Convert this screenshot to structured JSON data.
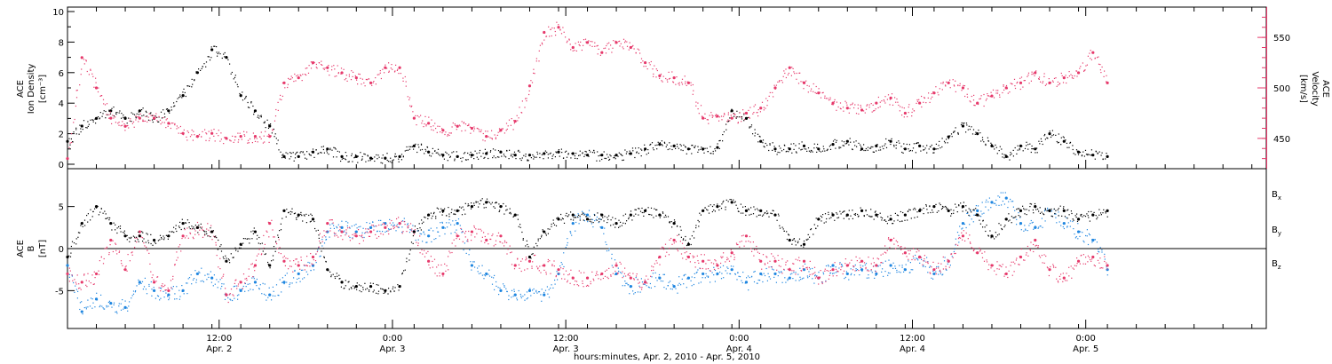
{
  "chart_data": [
    {
      "type": "scatter",
      "panel": "top",
      "left_axis": {
        "label_lines": [
          "ACE",
          "Ion Density",
          "[cm⁻³]"
        ],
        "ticks": [
          0,
          2,
          4,
          6,
          8,
          10
        ],
        "ylim": [
          0,
          10
        ],
        "color": "#000000"
      },
      "right_axis": {
        "label_lines": [
          "ACE",
          "Velocity",
          "[km/s]"
        ],
        "ticks": [
          450,
          500,
          550
        ],
        "ylim": [
          420,
          580
        ],
        "color": "#e6396b"
      },
      "series": [
        {
          "axis": "left",
          "color": "#000000",
          "x": [
            0,
            2,
            4,
            6,
            8,
            10,
            12,
            14,
            16,
            18,
            20,
            22,
            24,
            26,
            28,
            30,
            32,
            34,
            36,
            38,
            40,
            42,
            44,
            46,
            48,
            50,
            52,
            54,
            56,
            58,
            60,
            62,
            64,
            66,
            68,
            70,
            72,
            74,
            76,
            78,
            80,
            82,
            84,
            86,
            88,
            90,
            92,
            94,
            96,
            98,
            100,
            102,
            104,
            106,
            108,
            110,
            112,
            114,
            116,
            118,
            120,
            122,
            124,
            126,
            128,
            130,
            132,
            134,
            136,
            138,
            140,
            142,
            144
          ],
          "y": [
            1.5,
            2.5,
            3.0,
            3.5,
            3.0,
            3.5,
            3.0,
            3.5,
            4.5,
            6.0,
            7.5,
            7.0,
            4.5,
            3.5,
            2.5,
            0.5,
            0.5,
            0.8,
            1.0,
            0.5,
            0.5,
            0.4,
            0.4,
            0.5,
            1.2,
            0.8,
            0.6,
            0.5,
            0.6,
            0.7,
            0.8,
            0.6,
            0.6,
            0.7,
            0.8,
            0.7,
            0.6,
            0.6,
            0.6,
            0.7,
            1.0,
            1.3,
            1.2,
            1.0,
            1.0,
            1.1,
            3.5,
            3.0,
            1.5,
            1.0,
            1.0,
            1.2,
            1.0,
            1.3,
            1.5,
            1.0,
            1.2,
            1.5,
            1.0,
            1.2,
            1.0,
            1.8,
            2.5,
            2.0,
            1.2,
            0.5,
            1.2,
            1.0,
            2.0,
            1.5,
            0.8,
            0.6,
            0.5
          ]
        },
        {
          "axis": "right",
          "color": "#e6396b",
          "x": [
            0,
            2,
            4,
            6,
            8,
            10,
            12,
            14,
            16,
            18,
            20,
            22,
            24,
            26,
            28,
            30,
            32,
            34,
            36,
            38,
            40,
            42,
            44,
            46,
            48,
            50,
            52,
            54,
            56,
            58,
            60,
            62,
            64,
            66,
            68,
            70,
            72,
            74,
            76,
            78,
            80,
            82,
            84,
            86,
            88,
            90,
            92,
            94,
            96,
            98,
            100,
            102,
            104,
            106,
            108,
            110,
            112,
            114,
            116,
            118,
            120,
            122,
            124,
            126,
            128,
            130,
            132,
            134,
            136,
            138,
            140,
            142,
            144
          ],
          "y": [
            430,
            530,
            500,
            470,
            462,
            470,
            470,
            465,
            455,
            452,
            455,
            450,
            452,
            452,
            452,
            505,
            510,
            525,
            520,
            515,
            510,
            505,
            520,
            520,
            470,
            465,
            458,
            462,
            460,
            452,
            458,
            467,
            502,
            555,
            560,
            540,
            545,
            535,
            545,
            540,
            525,
            512,
            510,
            505,
            470,
            472,
            470,
            475,
            480,
            500,
            520,
            505,
            495,
            485,
            480,
            478,
            485,
            490,
            475,
            485,
            495,
            505,
            500,
            485,
            492,
            500,
            505,
            515,
            505,
            510,
            515,
            535,
            505
          ]
        }
      ]
    },
    {
      "type": "scatter",
      "panel": "bottom",
      "left_axis": {
        "label_lines": [
          "ACE",
          "B",
          "[nT]"
        ],
        "ticks": [
          -5,
          0,
          5
        ],
        "ylim": [
          -9.5,
          9.5
        ],
        "color": "#000000"
      },
      "zero_line": true,
      "legend_labels": [
        {
          "text": "B",
          "sub": "x",
          "color": "#000000"
        },
        {
          "text": "B",
          "sub": "y",
          "color": "#1f86e0"
        },
        {
          "text": "B",
          "sub": "z",
          "color": "#e6396b"
        }
      ],
      "series": [
        {
          "name": "B_x",
          "color": "#000000",
          "x": [
            0,
            2,
            4,
            6,
            8,
            10,
            12,
            14,
            16,
            18,
            20,
            22,
            24,
            26,
            28,
            30,
            32,
            34,
            36,
            38,
            40,
            42,
            44,
            46,
            48,
            50,
            52,
            54,
            56,
            58,
            60,
            62,
            64,
            66,
            68,
            70,
            72,
            74,
            76,
            78,
            80,
            82,
            84,
            86,
            88,
            90,
            92,
            94,
            96,
            98,
            100,
            102,
            104,
            106,
            108,
            110,
            112,
            114,
            116,
            118,
            120,
            122,
            124,
            126,
            128,
            130,
            132,
            134,
            136,
            138,
            140,
            142,
            144
          ],
          "y": [
            -1.0,
            3.0,
            5.0,
            3.0,
            1.5,
            1.5,
            1.0,
            1.5,
            3.0,
            2.5,
            2.0,
            -1.5,
            0.5,
            2.0,
            -2.0,
            4.5,
            4.0,
            3.5,
            -2.5,
            -4.0,
            -4.5,
            -4.5,
            -5.0,
            -4.5,
            2.0,
            4.0,
            4.5,
            4.5,
            5.0,
            5.5,
            5.0,
            4.0,
            -1.0,
            2.0,
            3.5,
            4.0,
            3.5,
            4.0,
            3.0,
            4.0,
            4.5,
            4.0,
            3.0,
            0.5,
            4.5,
            5.0,
            5.5,
            4.5,
            4.5,
            4.0,
            1.0,
            0.5,
            3.5,
            4.0,
            4.0,
            4.5,
            4.0,
            3.5,
            4.0,
            4.5,
            5.0,
            4.5,
            5.0,
            4.0,
            1.5,
            3.5,
            4.5,
            5.0,
            4.5,
            4.5,
            3.5,
            4.0,
            4.5
          ]
        },
        {
          "name": "B_y",
          "color": "#1f86e0",
          "x": [
            0,
            2,
            4,
            6,
            8,
            10,
            12,
            14,
            16,
            18,
            20,
            22,
            24,
            26,
            28,
            30,
            32,
            34,
            36,
            38,
            40,
            42,
            44,
            46,
            48,
            50,
            52,
            54,
            56,
            58,
            60,
            62,
            64,
            66,
            68,
            70,
            72,
            74,
            76,
            78,
            80,
            82,
            84,
            86,
            88,
            90,
            92,
            94,
            96,
            98,
            100,
            102,
            104,
            106,
            108,
            110,
            112,
            114,
            116,
            118,
            120,
            122,
            124,
            126,
            128,
            130,
            132,
            134,
            136,
            138,
            140,
            142,
            144
          ],
          "y": [
            -2.0,
            -7.5,
            -6.0,
            -6.5,
            -7.0,
            -4.0,
            -5.0,
            -5.5,
            -5.0,
            -3.0,
            -3.5,
            -5.5,
            -5.0,
            -4.0,
            -5.5,
            -4.0,
            -3.0,
            -2.0,
            2.0,
            2.5,
            2.0,
            2.5,
            3.0,
            3.0,
            2.0,
            1.5,
            2.5,
            3.0,
            -2.0,
            -3.0,
            -5.0,
            -5.5,
            -5.0,
            -5.5,
            -3.0,
            3.0,
            4.0,
            2.5,
            -3.0,
            -4.5,
            -4.0,
            -3.5,
            -4.5,
            -3.5,
            -3.0,
            -3.0,
            -2.5,
            -4.0,
            -3.0,
            -3.0,
            -3.5,
            -2.5,
            -3.5,
            -2.0,
            -3.0,
            -2.5,
            -3.0,
            -2.0,
            -2.5,
            -1.0,
            -3.0,
            -1.5,
            3.0,
            4.5,
            5.5,
            6.0,
            3.0,
            2.5,
            4.5,
            3.0,
            2.0,
            1.0,
            -2.5
          ]
        },
        {
          "name": "B_z",
          "color": "#e6396b",
          "x": [
            0,
            2,
            4,
            6,
            8,
            10,
            12,
            14,
            16,
            18,
            20,
            22,
            24,
            26,
            28,
            30,
            32,
            34,
            36,
            38,
            40,
            42,
            44,
            46,
            48,
            50,
            52,
            54,
            56,
            58,
            60,
            62,
            64,
            66,
            68,
            70,
            72,
            74,
            76,
            78,
            80,
            82,
            84,
            86,
            88,
            90,
            92,
            94,
            96,
            98,
            100,
            102,
            104,
            106,
            108,
            110,
            112,
            114,
            116,
            118,
            120,
            122,
            124,
            126,
            128,
            130,
            132,
            134,
            136,
            138,
            140,
            142,
            144
          ],
          "y": [
            -3.0,
            -4.0,
            -3.0,
            1.0,
            -2.5,
            2.0,
            -4.0,
            -5.0,
            1.5,
            2.5,
            2.0,
            -5.5,
            -4.0,
            -2.0,
            3.0,
            -1.5,
            -2.0,
            -1.0,
            3.0,
            2.0,
            1.5,
            2.0,
            2.5,
            3.0,
            2.0,
            -1.5,
            -3.0,
            1.5,
            2.0,
            1.0,
            1.5,
            -2.0,
            -1.5,
            -2.0,
            -2.5,
            -3.5,
            -3.5,
            -3.0,
            -2.0,
            -3.5,
            -4.0,
            -1.0,
            1.0,
            -1.0,
            -1.5,
            -2.0,
            -0.5,
            1.5,
            -1.5,
            -1.5,
            -2.5,
            -1.5,
            -3.5,
            -2.5,
            -2.0,
            -1.5,
            -2.0,
            1.0,
            -0.5,
            -1.0,
            -2.5,
            -1.5,
            1.5,
            -0.5,
            -2.0,
            -3.0,
            -1.0,
            1.0,
            -2.5,
            -3.5,
            -1.5,
            -1.0,
            -2.0
          ]
        }
      ]
    }
  ],
  "x_axis": {
    "xlim": [
      0,
      166
    ],
    "day_ticks": [
      {
        "x": 21,
        "time": "12:00",
        "date": "Apr. 2"
      },
      {
        "x": 45,
        "time": "0:00",
        "date": "Apr. 3"
      },
      {
        "x": 69,
        "time": "12:00",
        "date": "Apr. 3"
      },
      {
        "x": 93,
        "time": "0:00",
        "date": "Apr. 4"
      },
      {
        "x": 117,
        "time": "12:00",
        "date": "Apr. 4"
      },
      {
        "x": 141,
        "time": "0:00",
        "date": "Apr. 5"
      }
    ],
    "minor_tick_step": 4,
    "title": "hours:minutes, Apr.  2, 2010 - Apr.  5, 2010"
  }
}
